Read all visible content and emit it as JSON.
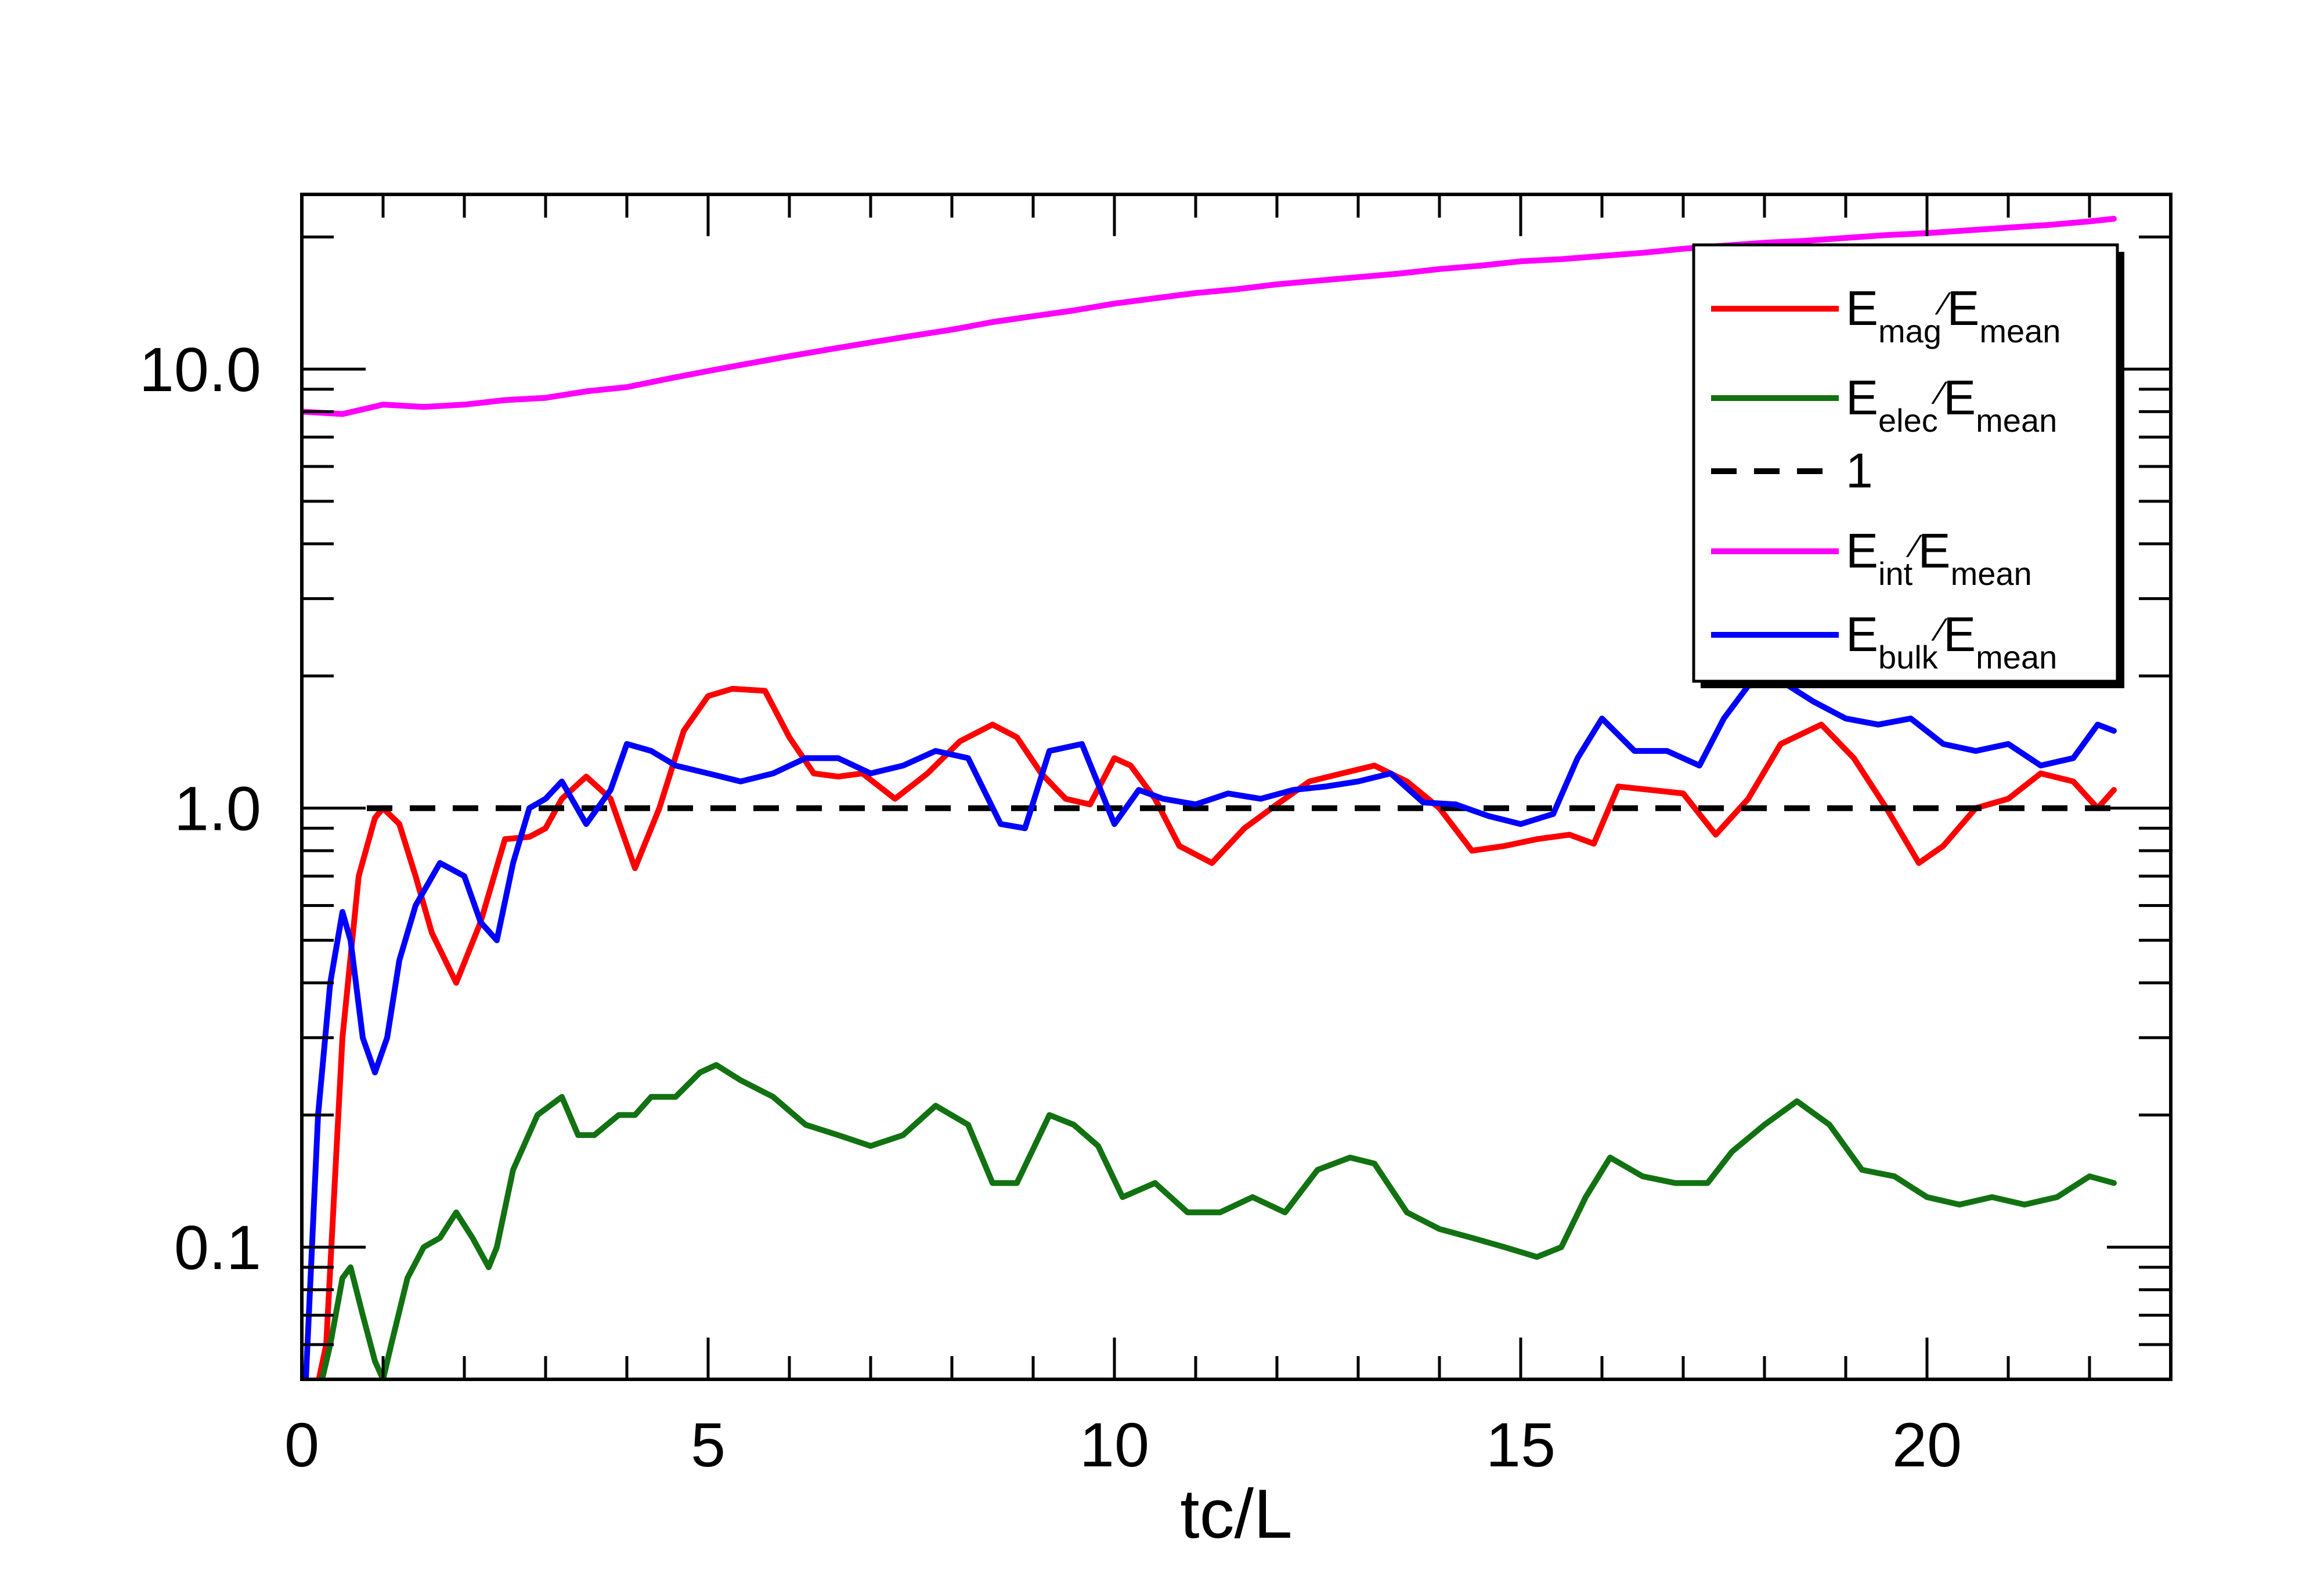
{
  "chart_data": {
    "type": "line",
    "xlabel": "tc/L",
    "ylabel": "",
    "xlim": [
      0,
      23
    ],
    "ylim": [
      0.05,
      25
    ],
    "yscale": "log",
    "x_ticks": [
      0,
      5,
      10,
      15,
      20
    ],
    "y_ticks": [
      0.1,
      1.0,
      10.0
    ],
    "y_tick_labels": [
      "0.1",
      "1.0",
      "10.0"
    ],
    "grid": false,
    "legend_position": "top-right",
    "series": [
      {
        "name": "E_mag/E_mean",
        "legend_main": "E",
        "legend_sub": "mag",
        "legend_tail": "E",
        "legend_tail_sub": "mean",
        "color": "#ff0000",
        "dash": "solid",
        "x": [
          0.1,
          0.3,
          0.5,
          0.7,
          0.9,
          1.0,
          1.2,
          1.4,
          1.6,
          1.9,
          2.2,
          2.5,
          2.8,
          3.0,
          3.2,
          3.5,
          3.8,
          4.1,
          4.4,
          4.7,
          5.0,
          5.3,
          5.7,
          6.0,
          6.3,
          6.6,
          6.9,
          7.3,
          7.7,
          8.1,
          8.5,
          8.8,
          9.1,
          9.4,
          9.7,
          10.0,
          10.2,
          10.5,
          10.8,
          11.2,
          11.6,
          12.0,
          12.4,
          12.8,
          13.2,
          13.6,
          14.0,
          14.4,
          14.8,
          15.2,
          15.6,
          15.9,
          16.2,
          16.6,
          17.0,
          17.4,
          17.8,
          18.2,
          18.7,
          19.1,
          19.5,
          19.9,
          20.2,
          20.6,
          21.0,
          21.4,
          21.8,
          22.1,
          22.3
        ],
        "y": [
          0.04,
          0.06,
          0.3,
          0.7,
          0.95,
          1.0,
          0.92,
          0.7,
          0.52,
          0.4,
          0.55,
          0.85,
          0.86,
          0.9,
          1.05,
          1.18,
          1.05,
          0.73,
          1.0,
          1.5,
          1.8,
          1.87,
          1.85,
          1.45,
          1.2,
          1.18,
          1.2,
          1.05,
          1.2,
          1.42,
          1.55,
          1.45,
          1.2,
          1.05,
          1.02,
          1.3,
          1.25,
          1.05,
          0.82,
          0.75,
          0.9,
          1.02,
          1.15,
          1.2,
          1.25,
          1.15,
          1.0,
          0.8,
          0.82,
          0.85,
          0.87,
          0.83,
          1.12,
          1.1,
          1.08,
          0.87,
          1.05,
          1.4,
          1.55,
          1.3,
          1.0,
          0.75,
          0.82,
          1.0,
          1.05,
          1.2,
          1.15,
          1.0,
          1.1
        ]
      },
      {
        "name": "E_elec/E_mean",
        "legend_main": "E",
        "legend_sub": "elec",
        "legend_tail": "E",
        "legend_tail_sub": "mean",
        "color": "#127212",
        "dash": "solid",
        "x": [
          0.25,
          0.35,
          0.5,
          0.6,
          0.75,
          0.9,
          1.0,
          1.1,
          1.3,
          1.5,
          1.7,
          1.9,
          2.1,
          2.3,
          2.4,
          2.6,
          2.9,
          3.2,
          3.4,
          3.6,
          3.9,
          4.1,
          4.3,
          4.6,
          4.9,
          5.1,
          5.4,
          5.8,
          6.2,
          6.6,
          7.0,
          7.4,
          7.8,
          8.2,
          8.5,
          8.8,
          9.2,
          9.5,
          9.8,
          10.1,
          10.5,
          10.9,
          11.3,
          11.7,
          12.1,
          12.5,
          12.9,
          13.2,
          13.6,
          14.0,
          14.4,
          14.8,
          15.2,
          15.5,
          15.8,
          16.1,
          16.5,
          16.9,
          17.3,
          17.6,
          18.0,
          18.4,
          18.8,
          19.2,
          19.6,
          20.0,
          20.4,
          20.8,
          21.2,
          21.6,
          22.0,
          22.3
        ],
        "y": [
          0.05,
          0.06,
          0.085,
          0.09,
          0.07,
          0.055,
          0.05,
          0.06,
          0.085,
          0.1,
          0.105,
          0.12,
          0.105,
          0.09,
          0.1,
          0.15,
          0.2,
          0.22,
          0.18,
          0.18,
          0.2,
          0.2,
          0.22,
          0.22,
          0.25,
          0.26,
          0.24,
          0.22,
          0.19,
          0.18,
          0.17,
          0.18,
          0.21,
          0.19,
          0.14,
          0.14,
          0.2,
          0.19,
          0.17,
          0.13,
          0.14,
          0.12,
          0.12,
          0.13,
          0.12,
          0.15,
          0.16,
          0.155,
          0.12,
          0.11,
          0.105,
          0.1,
          0.095,
          0.1,
          0.13,
          0.16,
          0.145,
          0.14,
          0.14,
          0.165,
          0.19,
          0.215,
          0.19,
          0.15,
          0.145,
          0.13,
          0.125,
          0.13,
          0.125,
          0.13,
          0.145,
          0.14
        ]
      },
      {
        "name": "1",
        "legend_main": "1",
        "legend_sub": "",
        "legend_tail": "",
        "legend_tail_sub": "",
        "color": "#000000",
        "dash": "dashed",
        "x": [
          0.8,
          22.3
        ],
        "y": [
          1.0,
          1.0
        ]
      },
      {
        "name": "E_int/E_mean",
        "legend_main": "E",
        "legend_sub": "int",
        "legend_tail": "E",
        "legend_tail_sub": "mean",
        "color": "#ff00ff",
        "dash": "solid",
        "x": [
          0.0,
          0.5,
          1.0,
          1.5,
          2.0,
          2.5,
          3.0,
          3.5,
          4.0,
          4.5,
          5.0,
          5.5,
          6.0,
          6.5,
          7.0,
          7.5,
          8.0,
          8.5,
          9.0,
          9.5,
          10.0,
          10.5,
          11.0,
          11.5,
          12.0,
          12.5,
          13.0,
          13.5,
          14.0,
          14.5,
          15.0,
          15.5,
          16.0,
          16.5,
          17.0,
          17.5,
          18.0,
          18.5,
          19.0,
          19.5,
          20.0,
          20.5,
          21.0,
          21.5,
          22.0,
          22.3
        ],
        "y": [
          8.0,
          7.9,
          8.3,
          8.2,
          8.3,
          8.5,
          8.6,
          8.9,
          9.1,
          9.5,
          9.9,
          10.3,
          10.7,
          11.1,
          11.5,
          11.9,
          12.3,
          12.8,
          13.2,
          13.6,
          14.1,
          14.5,
          14.9,
          15.2,
          15.6,
          15.9,
          16.2,
          16.5,
          16.9,
          17.2,
          17.6,
          17.8,
          18.1,
          18.4,
          18.8,
          19.1,
          19.4,
          19.6,
          19.9,
          20.2,
          20.4,
          20.7,
          21.0,
          21.3,
          21.7,
          22.0
        ]
      },
      {
        "name": "E_bulk/E_mean",
        "legend_main": "E",
        "legend_sub": "bulk",
        "legend_tail": "E",
        "legend_tail_sub": "mean",
        "color": "#0000ff",
        "dash": "solid",
        "x": [
          0.05,
          0.2,
          0.35,
          0.5,
          0.6,
          0.75,
          0.9,
          1.05,
          1.2,
          1.4,
          1.7,
          2.0,
          2.2,
          2.4,
          2.6,
          2.8,
          3.0,
          3.2,
          3.5,
          3.8,
          4.0,
          4.3,
          4.6,
          5.0,
          5.4,
          5.8,
          6.2,
          6.6,
          7.0,
          7.4,
          7.8,
          8.2,
          8.6,
          8.9,
          9.2,
          9.6,
          10.0,
          10.3,
          10.6,
          11.0,
          11.4,
          11.8,
          12.2,
          12.6,
          13.0,
          13.4,
          13.8,
          14.2,
          14.6,
          15.0,
          15.4,
          15.7,
          16.0,
          16.4,
          16.8,
          17.2,
          17.5,
          17.8,
          18.2,
          18.6,
          19.0,
          19.4,
          19.8,
          20.2,
          20.6,
          21.0,
          21.4,
          21.8,
          22.1,
          22.3
        ],
        "y": [
          0.05,
          0.2,
          0.4,
          0.58,
          0.5,
          0.3,
          0.25,
          0.3,
          0.45,
          0.6,
          0.75,
          0.7,
          0.55,
          0.5,
          0.75,
          1.0,
          1.05,
          1.15,
          0.92,
          1.1,
          1.4,
          1.35,
          1.25,
          1.2,
          1.15,
          1.2,
          1.3,
          1.3,
          1.2,
          1.25,
          1.35,
          1.3,
          0.92,
          0.9,
          1.35,
          1.4,
          0.92,
          1.1,
          1.05,
          1.02,
          1.08,
          1.05,
          1.1,
          1.12,
          1.15,
          1.2,
          1.03,
          1.02,
          0.96,
          0.92,
          0.97,
          1.3,
          1.6,
          1.35,
          1.35,
          1.25,
          1.6,
          1.9,
          1.95,
          1.75,
          1.6,
          1.55,
          1.6,
          1.4,
          1.35,
          1.4,
          1.25,
          1.3,
          1.55,
          1.5
        ]
      }
    ]
  }
}
